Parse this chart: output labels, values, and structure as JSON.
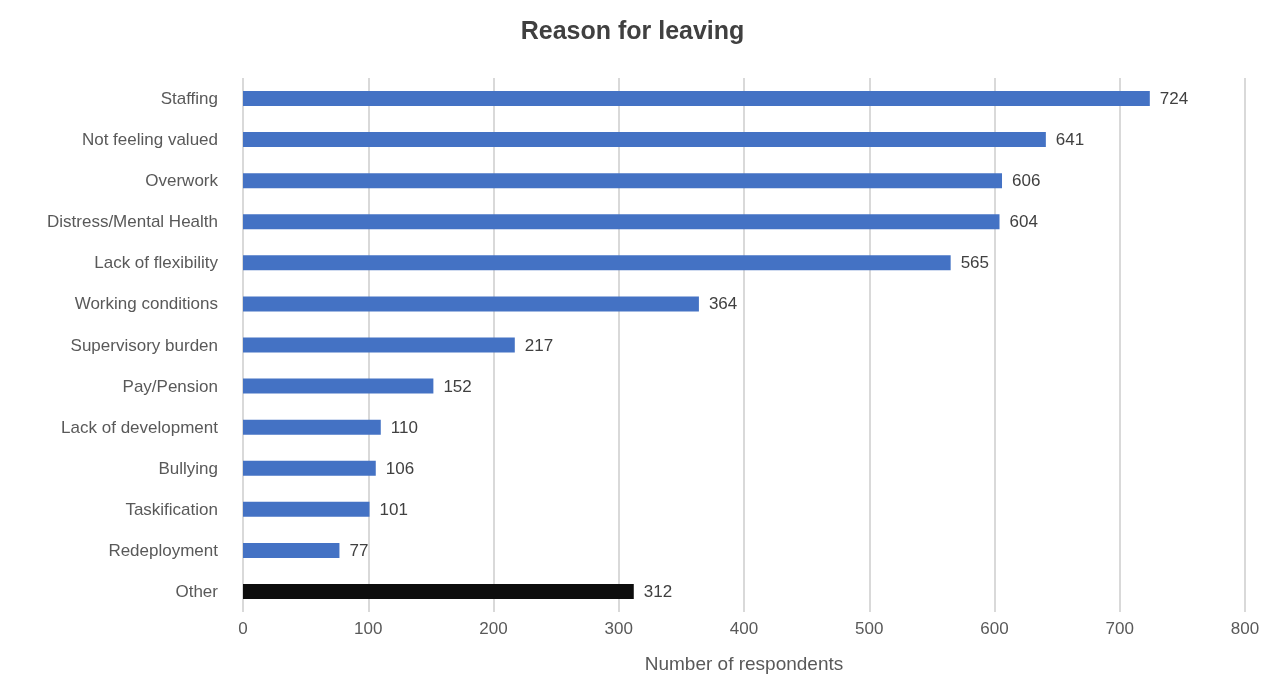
{
  "chart_data": {
    "type": "bar",
    "orientation": "horizontal",
    "title": "Reason for leaving",
    "xlabel": "Number of respondents",
    "categories": [
      "Staffing",
      "Not feeling valued",
      "Overwork",
      "Distress/Mental Health",
      "Lack of flexibility",
      "Working conditions",
      "Supervisory burden",
      "Pay/Pension",
      "Lack of development",
      "Bullying",
      "Taskification",
      "Redeployment",
      "Other"
    ],
    "values": [
      724,
      641,
      606,
      604,
      565,
      364,
      217,
      152,
      110,
      106,
      101,
      77,
      312
    ],
    "colors": [
      "#4472c4",
      "#4472c4",
      "#4472c4",
      "#4472c4",
      "#4472c4",
      "#4472c4",
      "#4472c4",
      "#4472c4",
      "#4472c4",
      "#4472c4",
      "#4472c4",
      "#4472c4",
      "#0d0d0d"
    ],
    "xlim": [
      0,
      800
    ],
    "xticks": [
      0,
      100,
      200,
      300,
      400,
      500,
      600,
      700,
      800
    ],
    "grid": "x",
    "data_labels": true
  }
}
